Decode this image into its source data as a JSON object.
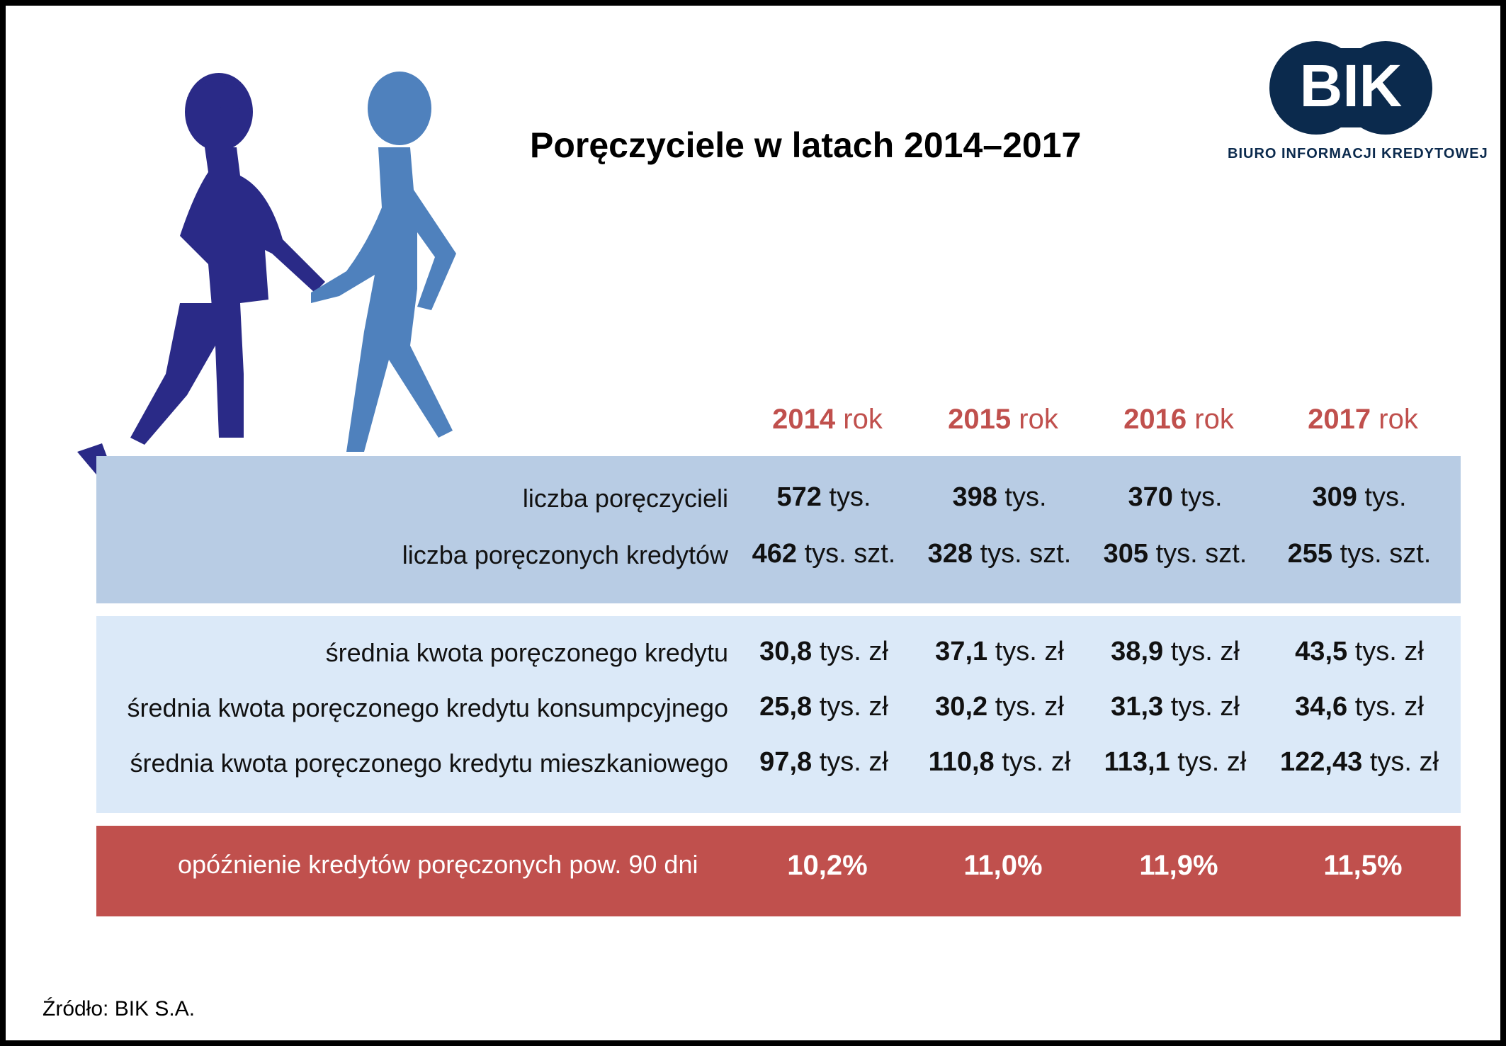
{
  "title": "Poręczyciele w latach 2014–2017",
  "logo": {
    "text": "BIK",
    "subtitle": "BIURO INFORMACJI KREDYTOWEJ",
    "color": "#0b2a4d"
  },
  "years": [
    {
      "year": "2014",
      "suffix": " rok"
    },
    {
      "year": "2015",
      "suffix": " rok"
    },
    {
      "year": "2016",
      "suffix": " rok"
    },
    {
      "year": "2017",
      "suffix": " rok"
    }
  ],
  "rows": [
    {
      "label": "liczba poręczycieli",
      "unit": " tys.",
      "values": [
        "572",
        "398",
        "370",
        "309"
      ]
    },
    {
      "label": "liczba poręczonych kredytów",
      "unit": " tys. szt.",
      "values": [
        "462",
        "328",
        "305",
        "255"
      ]
    },
    {
      "label": "średnia kwota poręczonego kredytu",
      "unit": " tys. zł",
      "values": [
        "30,8",
        "37,1",
        "38,9",
        "43,5"
      ]
    },
    {
      "label": "średnia kwota poręczonego kredytu konsumpcyjnego",
      "unit": " tys. zł",
      "values": [
        "25,8",
        "30,2",
        "31,3",
        "34,6"
      ]
    },
    {
      "label": "średnia kwota poręczonego kredytu mieszkaniowego",
      "unit": " tys. zł",
      "values": [
        "97,8",
        "110,8",
        "113,1",
        "122,43"
      ]
    }
  ],
  "delay": {
    "label": "opóźnienie kredytów poręczonych pow. 90 dni",
    "values": [
      "10,2%",
      "11,0%",
      "11,9%",
      "11,5%"
    ]
  },
  "source": "Źródło: BIK S.A.",
  "colors": {
    "accent_red": "#c0504d",
    "band_dark": "#b8cce4",
    "band_light": "#dbe9f8",
    "figure_left": "#2a2a87",
    "figure_right": "#4f81bd"
  }
}
